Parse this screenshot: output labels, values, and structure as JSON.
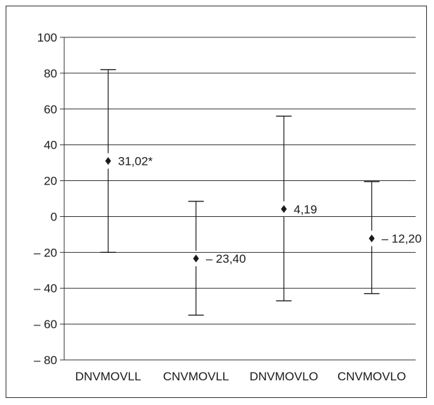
{
  "chart_data": {
    "type": "error-bar",
    "title": "",
    "xlabel": "",
    "ylabel": "",
    "ylim": [
      -80,
      100
    ],
    "yticks": [
      100,
      80,
      60,
      40,
      20,
      0,
      -20,
      -40,
      -60,
      -80
    ],
    "ytick_labels": [
      "100",
      "80",
      "60",
      "40",
      "20",
      "0",
      "– 20",
      "– 40",
      "– 60",
      "– 80"
    ],
    "grid": true,
    "categories": [
      "DNVMOVLL",
      "CNVMOVLL",
      "DNVMOVLO",
      "CNVMOVLO"
    ],
    "points": [
      {
        "category": "DNVMOVLL",
        "value": 31.02,
        "upper": 82,
        "lower": -20,
        "label": "31,02*"
      },
      {
        "category": "CNVMOVLL",
        "value": -23.4,
        "upper": 8.5,
        "lower": -55,
        "label": "– 23,40"
      },
      {
        "category": "DNVMOVLO",
        "value": 4.19,
        "upper": 56,
        "lower": -47,
        "label": "4,19"
      },
      {
        "category": "CNVMOVLO",
        "value": -12.2,
        "upper": 19.5,
        "lower": -43,
        "label": "– 12,20"
      }
    ],
    "colors": {
      "marks": "#1a1a1a",
      "grid": "#333333"
    }
  }
}
